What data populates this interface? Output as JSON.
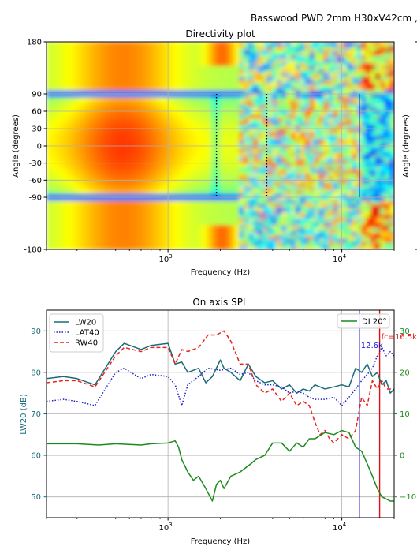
{
  "figure_title": "Basswood PWD 2mm H30xV42cm ,",
  "colors": {
    "lw": "#1a6b78",
    "lat": "#1f1fcc",
    "rw": "#e8231d",
    "di": "#1c8a1c",
    "marker_blue": "#1010cc",
    "marker_red": "#e01010"
  },
  "chart_data": [
    {
      "type": "heatmap",
      "title": "Directivity plot",
      "xlabel": "Frequency (Hz)",
      "ylabel": "Angle (degrees)",
      "right_ylabel": "Angle (degrees)",
      "xscale": "log",
      "xlim": [
        200,
        20000
      ],
      "ylim": [
        -180,
        180
      ],
      "x_ticks": [
        {
          "value": 1000,
          "base": "10",
          "exp": "3"
        },
        {
          "value": 10000,
          "base": "10",
          "exp": "4"
        }
      ],
      "y_ticks": [
        180,
        90,
        60,
        30,
        0,
        -30,
        -60,
        -90,
        -180
      ],
      "colormap": "jet",
      "markers": [
        {
          "freq": 1900,
          "angle_range": [
            -90,
            90
          ],
          "style": "dotted"
        },
        {
          "freq": 3700,
          "angle_range": [
            -90,
            90
          ],
          "style": "dotted"
        },
        {
          "freq": 12600,
          "angle_range": [
            -90,
            90
          ],
          "style": "solid"
        }
      ]
    },
    {
      "type": "line",
      "title": "On axis SPL",
      "xlabel": "Frequency (Hz)",
      "ylabel": "LW20 (dB)",
      "xscale": "log",
      "xlim": [
        200,
        20000
      ],
      "ylim": [
        45,
        95
      ],
      "y_ticks": [
        50,
        60,
        70,
        80,
        90
      ],
      "right_ylim": [
        -15,
        35
      ],
      "right_y_ticks": [
        -10,
        0,
        10,
        20,
        30
      ],
      "x_ticks": [
        {
          "value": 1000,
          "base": "10",
          "exp": "3"
        },
        {
          "value": 10000,
          "base": "10",
          "exp": "4"
        }
      ],
      "legend_left": "upper-left",
      "legend_right": "upper-right",
      "series": [
        {
          "name": "LW20",
          "axis": "left",
          "style": "solid",
          "x": [
            200,
            250,
            300,
            380,
            500,
            560,
            700,
            800,
            1000,
            1100,
            1200,
            1300,
            1500,
            1650,
            1800,
            2000,
            2100,
            2300,
            2600,
            2900,
            3200,
            3600,
            4000,
            4500,
            5000,
            5500,
            6000,
            6500,
            7000,
            8000,
            9000,
            10000,
            11000,
            12000,
            13000,
            14000,
            15000,
            16000,
            17000,
            18000,
            19000,
            20000
          ],
          "y": [
            78.5,
            79,
            78.5,
            77,
            85,
            87,
            85.5,
            86.5,
            87,
            82,
            82.5,
            80,
            81,
            77.5,
            79,
            83,
            81,
            80,
            78,
            82,
            79,
            77.5,
            78,
            76,
            77,
            75,
            76,
            75.5,
            77,
            76,
            76.5,
            77,
            76.5,
            81,
            80,
            82,
            79,
            80,
            77,
            78,
            75,
            76
          ]
        },
        {
          "name": "LAT40",
          "axis": "left",
          "style": "dotted",
          "x": [
            200,
            250,
            300,
            380,
            500,
            560,
            700,
            800,
            1000,
            1100,
            1200,
            1300,
            1500,
            1700,
            2000,
            2300,
            2600,
            2900,
            3200,
            3600,
            4000,
            4500,
            5000,
            5500,
            6000,
            6500,
            7000,
            8000,
            9000,
            10000,
            11000,
            12000,
            13000,
            14000,
            15000,
            16000,
            17000,
            18000,
            19000,
            20000
          ],
          "y": [
            73,
            73.5,
            73,
            72,
            80,
            81,
            78.5,
            79.5,
            79,
            77,
            72,
            77,
            79,
            81,
            80.5,
            81,
            79.5,
            80,
            78,
            77,
            77,
            76.5,
            75,
            75.5,
            75,
            74,
            73.5,
            73.5,
            74,
            72,
            74,
            76,
            78,
            79.5,
            81,
            84,
            86,
            84,
            85,
            84
          ]
        },
        {
          "name": "RW40",
          "axis": "left",
          "style": "dashed",
          "x": [
            200,
            250,
            300,
            380,
            500,
            560,
            700,
            800,
            1000,
            1100,
            1200,
            1300,
            1500,
            1700,
            1900,
            2100,
            2300,
            2600,
            2900,
            3200,
            3600,
            4000,
            4500,
            5000,
            5500,
            6000,
            6500,
            7000,
            7500,
            8000,
            8500,
            9000,
            10000,
            11000,
            12000,
            13000,
            14000,
            15000,
            16000,
            17000,
            18000,
            19000,
            20000
          ],
          "y": [
            77.5,
            78,
            78,
            76.5,
            84,
            86,
            85,
            86,
            86,
            82,
            85.5,
            85,
            86,
            89,
            89,
            90,
            87.5,
            82,
            82,
            77,
            75,
            76,
            73,
            75,
            72,
            73,
            72,
            68,
            65,
            66,
            64,
            63,
            65,
            64,
            66,
            74,
            72,
            78,
            76,
            78,
            76,
            76,
            75.5
          ]
        },
        {
          "name": "DI 20°",
          "axis": "right",
          "style": "solid",
          "x": [
            200,
            300,
            400,
            500,
            700,
            800,
            1000,
            1100,
            1150,
            1200,
            1300,
            1400,
            1500,
            1650,
            1800,
            1900,
            2000,
            2100,
            2300,
            2600,
            3000,
            3200,
            3600,
            4000,
            4500,
            5000,
            5500,
            6000,
            6500,
            7000,
            8000,
            9000,
            10000,
            11000,
            12000,
            13000,
            14000,
            15000,
            16000,
            17000,
            18000,
            19000,
            20000
          ],
          "y": [
            2.8,
            2.8,
            2.5,
            2.8,
            2.5,
            2.8,
            3,
            3.5,
            2,
            -1,
            -4,
            -6,
            -5,
            -8,
            -11,
            -7,
            -6,
            -8,
            -5,
            -4,
            -2,
            -1,
            0,
            3,
            3,
            1,
            3,
            2,
            4,
            4,
            5.5,
            5,
            6,
            5.5,
            2,
            1,
            -2,
            -5,
            -8,
            -10,
            -10.5,
            -11,
            -11
          ]
        }
      ],
      "markers": [
        {
          "freq": 12600,
          "label": "12.6k",
          "color": "blue"
        },
        {
          "freq": 16500,
          "label": "fc=16.5k",
          "color": "red"
        }
      ]
    }
  ]
}
